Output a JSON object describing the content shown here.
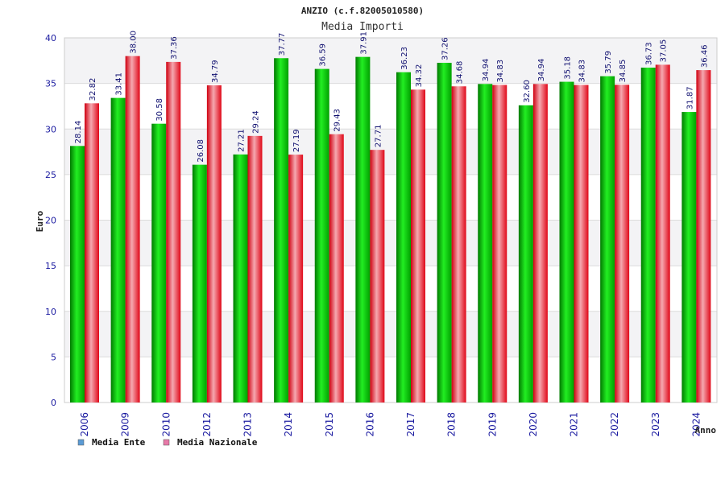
{
  "chart_data": {
    "type": "bar",
    "title": "ANZIO (c.f.82005010580)",
    "subtitle": "Media Importi",
    "xlabel": "Anno",
    "ylabel": "Euro",
    "ylim": [
      0,
      40
    ],
    "yticks": [
      0,
      5,
      10,
      15,
      20,
      25,
      30,
      35,
      40
    ],
    "grid": true,
    "legend_position": "bottom-left",
    "categories": [
      "2006",
      "2009",
      "2010",
      "2012",
      "2013",
      "2014",
      "2015",
      "2016",
      "2017",
      "2018",
      "2019",
      "2020",
      "2021",
      "2022",
      "2023",
      "2024"
    ],
    "series": [
      {
        "name": "Media Ente",
        "color": "#00b000",
        "legend_color": "#5b9bd5",
        "values": [
          28.14,
          33.41,
          30.58,
          26.08,
          27.21,
          37.77,
          36.59,
          37.91,
          36.23,
          37.26,
          34.94,
          32.6,
          35.18,
          35.79,
          36.73,
          31.87
        ],
        "labels": [
          "28.14",
          "33.41",
          "30.58",
          "26.08",
          "27.21",
          "37.77",
          "36.59",
          "37.91",
          "36.23",
          "37.26",
          "34.94",
          "32.60",
          "35.18",
          "35.79",
          "36.73",
          "31.87"
        ]
      },
      {
        "name": "Media Nazionale",
        "color": "#e81020",
        "legend_color": "#e879a8",
        "values": [
          32.82,
          38.0,
          37.36,
          34.79,
          29.24,
          27.19,
          29.43,
          27.71,
          34.32,
          34.68,
          34.83,
          34.94,
          34.83,
          34.85,
          37.05,
          36.46
        ],
        "labels": [
          "32.82",
          "38.00",
          "37.36",
          "34.79",
          "29.24",
          "27.19",
          "29.43",
          "27.71",
          "34.32",
          "34.68",
          "34.83",
          "34.94",
          "34.83",
          "34.85",
          "37.05",
          "36.46"
        ]
      }
    ]
  }
}
